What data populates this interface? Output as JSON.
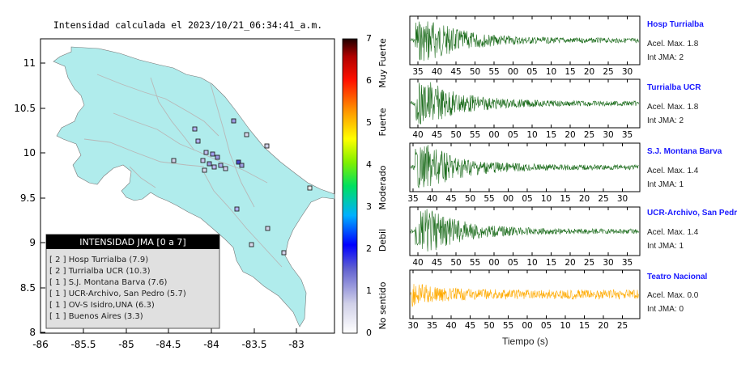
{
  "map": {
    "title": "Intensidad calculada el 2023/10/21_06:34:41_a.m.",
    "x_ticks": [
      "-86",
      "-85.5",
      "-85",
      "-84.5",
      "-84",
      "-83.5",
      "-83"
    ],
    "y_ticks": [
      "11",
      "10.5",
      "10",
      "9.5",
      "9",
      "8.5",
      "8"
    ],
    "legend": {
      "title": "INTENSIDAD JMA [0 a 7]",
      "entries": [
        "[ 2 ]  Hosp Turrialba (7.9)",
        "[ 2 ]  Turrialba UCR (10.3)",
        "[ 1 ]  S.J. Montana Barva (7.6)",
        "[ 1 ]  UCR-Archivo, San Pedro (5.7)",
        "[ 1 ]  OV-S Isidro,UNA (6.3)",
        "[ 1 ]  Buenos Aires (3.3)"
      ]
    }
  },
  "colorbar": {
    "ticks": [
      "0",
      "1",
      "2",
      "3",
      "4",
      "5",
      "6",
      "7"
    ],
    "labels": [
      "No sentido",
      "Debil",
      "Moderado",
      "Fuerte",
      "Muy Fuerte"
    ]
  },
  "colors": {
    "land": "#b0ecec",
    "sea": "#ffffff",
    "trace_green": "#1a6b1a",
    "trace_orange": "#ffaa00",
    "station_name": "#1a1aff"
  },
  "chart_data": {
    "type": "line",
    "xlabel": "Tiempo (s)",
    "series": [
      {
        "name": "Hosp Turrialba",
        "acel": "Acel. Max. 1.8",
        "jma": "Int JMA: 2",
        "color": "#1a6b1a",
        "ticks": [
          "35",
          "40",
          "45",
          "50",
          "55",
          "00",
          "05",
          "10",
          "15",
          "20",
          "25",
          "30"
        ]
      },
      {
        "name": "Turrialba UCR",
        "acel": "Acel. Max. 1.8",
        "jma": "Int JMA: 2",
        "color": "#1a6b1a",
        "ticks": [
          "40",
          "45",
          "50",
          "55",
          "00",
          "05",
          "10",
          "15",
          "20",
          "25",
          "30",
          "35"
        ]
      },
      {
        "name": "S.J. Montana Barva",
        "acel": "Acel. Max. 1.4",
        "jma": "Int JMA: 1",
        "color": "#1a6b1a",
        "ticks": [
          "35",
          "40",
          "45",
          "50",
          "55",
          "00",
          "05",
          "10",
          "15",
          "20",
          "25",
          "30"
        ]
      },
      {
        "name": "UCR-Archivo, San Pedro",
        "acel": "Acel. Max. 1.4",
        "jma": "Int JMA: 1",
        "color": "#1a6b1a",
        "ticks": [
          "40",
          "45",
          "50",
          "55",
          "00",
          "05",
          "10",
          "15",
          "20",
          "25",
          "30",
          "35"
        ]
      },
      {
        "name": "Teatro Nacional",
        "acel": "Acel. Max. 0.0",
        "jma": "Int JMA: 0",
        "color": "#ffaa00",
        "ticks": [
          "30",
          "35",
          "40",
          "45",
          "50",
          "55",
          "00",
          "05",
          "10",
          "15",
          "20",
          "25"
        ]
      }
    ]
  }
}
